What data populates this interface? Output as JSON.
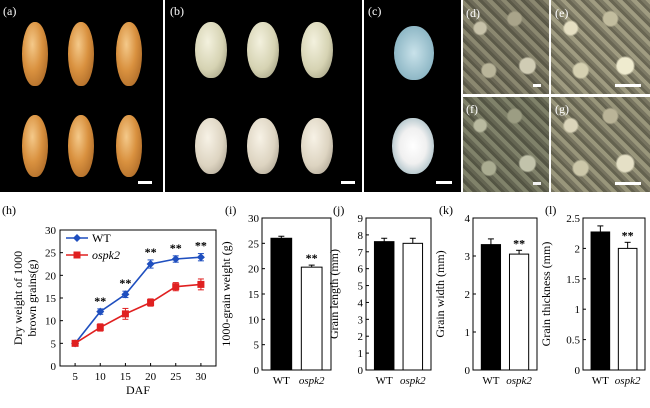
{
  "panels": {
    "a": "(a)",
    "b": "(b)",
    "c": "(c)",
    "d": "(d)",
    "e": "(e)",
    "f": "(f)",
    "g": "(g)",
    "h": "(h)",
    "i": "(i)",
    "j": "(j)",
    "k": "(k)",
    "l": "(l)"
  },
  "chart_data": [
    {
      "panel": "(h)",
      "type": "line",
      "xlabel": "DAF",
      "ylabel": "Dry weight of 1000 brown grains(g)",
      "ylabel_lines": [
        "Dry weight of 1000",
        "brown grains(g)"
      ],
      "x": [
        5,
        10,
        15,
        20,
        25,
        30
      ],
      "xlim": [
        2,
        33
      ],
      "ylim": [
        0,
        30
      ],
      "yticks": [
        0,
        5,
        10,
        15,
        20,
        25,
        30
      ],
      "series": [
        {
          "name": "WT",
          "color": "#1f4fbf",
          "marker": "diamond",
          "values": [
            5.0,
            12.0,
            15.8,
            22.5,
            23.6,
            24.0
          ],
          "err": [
            0.4,
            0.6,
            0.7,
            0.9,
            0.7,
            0.8
          ]
        },
        {
          "name": "ospk2",
          "color": "#e02020",
          "marker": "square",
          "values": [
            5.0,
            8.5,
            11.5,
            14.0,
            17.5,
            18.0
          ],
          "err": [
            0.4,
            0.8,
            1.2,
            0.8,
            0.9,
            1.2
          ]
        }
      ],
      "annotations": [
        "**",
        "**",
        "**",
        "**",
        "**"
      ],
      "annotation_x": [
        10,
        15,
        20,
        25,
        30
      ],
      "legend": "top-left"
    },
    {
      "panel": "(i)",
      "type": "bar",
      "ylabel": "1000-grain weight (g)",
      "categories": [
        "WT",
        "ospk2"
      ],
      "values": [
        26.0,
        20.3
      ],
      "err": [
        0.4,
        0.4
      ],
      "ylim": [
        0,
        30
      ],
      "yticks": [
        0,
        5,
        10,
        15,
        20,
        25,
        30
      ],
      "annotation": "**"
    },
    {
      "panel": "(j)",
      "type": "bar",
      "ylabel": "Grain length (mm)",
      "categories": [
        "WT",
        "ospk2"
      ],
      "values": [
        7.6,
        7.5
      ],
      "err": [
        0.2,
        0.3
      ],
      "ylim": [
        0,
        9
      ],
      "yticks": [
        0,
        1,
        2,
        3,
        4,
        5,
        6,
        7,
        8,
        9
      ],
      "annotation": ""
    },
    {
      "panel": "(k)",
      "type": "bar",
      "ylabel": "Grain width (mm)",
      "categories": [
        "WT",
        "ospk2"
      ],
      "values": [
        3.3,
        3.05
      ],
      "err": [
        0.15,
        0.1
      ],
      "ylim": [
        0,
        4
      ],
      "yticks": [
        0,
        1,
        2,
        3,
        4
      ],
      "annotation": "**"
    },
    {
      "panel": "(l)",
      "type": "bar",
      "ylabel": "Grain thickness (mm)",
      "categories": [
        "WT",
        "ospk2"
      ],
      "values": [
        2.27,
        2.0
      ],
      "err": [
        0.1,
        0.1
      ],
      "ylim": [
        0,
        2.5
      ],
      "yticks": [
        0,
        0.5,
        1,
        1.5,
        2,
        2.5
      ],
      "annotation": "**"
    }
  ]
}
